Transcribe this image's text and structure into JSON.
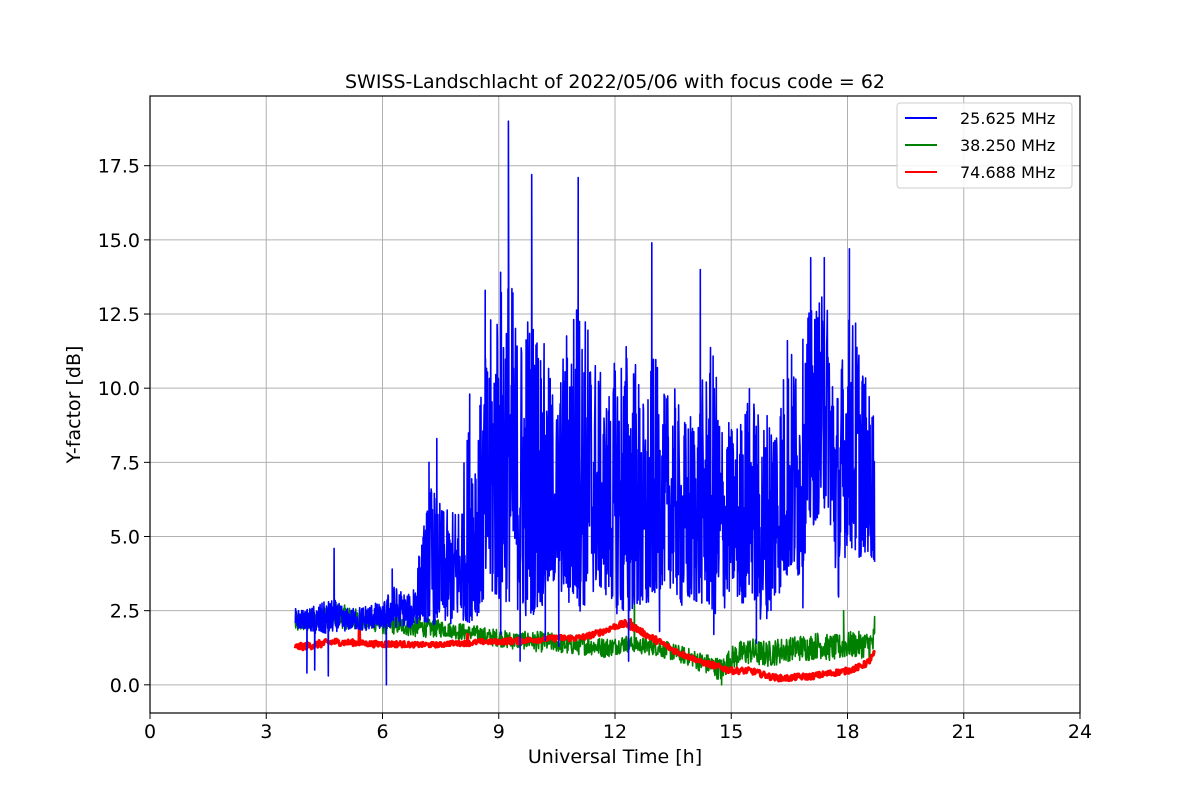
{
  "chart_data": {
    "type": "line",
    "title": "SWISS-Landschlacht of 2022/05/06 with focus code = 62",
    "xlabel": "Universal Time [h]",
    "ylabel": "Y-factor [dB]",
    "xlim": [
      0,
      24
    ],
    "ylim": [
      -0.95,
      19.85
    ],
    "xticks": [
      0,
      3,
      6,
      9,
      12,
      15,
      18,
      21,
      24
    ],
    "xtick_labels": [
      "0",
      "3",
      "6",
      "9",
      "12",
      "15",
      "18",
      "21",
      "24"
    ],
    "yticks": [
      0,
      2.5,
      5,
      7.5,
      10,
      12.5,
      15,
      17.5
    ],
    "ytick_labels": [
      "0.0",
      "2.5",
      "5.0",
      "7.5",
      "10.0",
      "12.5",
      "15.0",
      "17.5"
    ],
    "grid": true,
    "legend_position": "top-right",
    "series": [
      {
        "name": "25.625 MHz",
        "color": "#0000ff",
        "x": [
          3.75,
          4.0,
          4.25,
          4.5,
          4.75,
          5.0,
          5.25,
          5.5,
          5.75,
          6.0,
          6.25,
          6.5,
          6.75,
          7.0,
          7.25,
          7.5,
          7.75,
          8.0,
          8.25,
          8.5,
          8.75,
          9.0,
          9.25,
          9.5,
          9.75,
          10.0,
          10.25,
          10.5,
          10.75,
          11.0,
          11.25,
          11.5,
          11.75,
          12.0,
          12.25,
          12.5,
          12.75,
          13.0,
          13.25,
          13.5,
          13.75,
          14.0,
          14.25,
          14.5,
          14.75,
          15.0,
          15.25,
          15.5,
          15.75,
          16.0,
          16.25,
          16.5,
          16.75,
          17.0,
          17.25,
          17.5,
          17.75,
          18.0,
          18.25,
          18.5,
          18.7
        ],
        "low": [
          1.9,
          1.9,
          1.7,
          1.7,
          1.8,
          1.8,
          1.9,
          1.8,
          1.9,
          1.9,
          1.9,
          2.0,
          1.9,
          2.2,
          2.0,
          2.1,
          2.0,
          2.2,
          2.1,
          2.4,
          2.8,
          2.7,
          2.8,
          2.5,
          2.2,
          2.5,
          2.8,
          3.5,
          2.6,
          2.4,
          2.6,
          3.2,
          3.0,
          2.7,
          2.1,
          2.6,
          1.9,
          2.9,
          3.4,
          3.2,
          2.5,
          2.7,
          2.7,
          2.4,
          2.2,
          3.3,
          2.6,
          3.2,
          2.1,
          2.3,
          3.1,
          3.7,
          3.5,
          5.0,
          5.7,
          6.0,
          2.8,
          4.8,
          4.2,
          4.5,
          4.1
        ],
        "high": [
          2.6,
          2.5,
          2.7,
          2.8,
          2.9,
          2.6,
          2.6,
          2.7,
          2.8,
          2.7,
          3.4,
          3.2,
          3.0,
          4.9,
          6.9,
          6.1,
          5.8,
          6.4,
          9.4,
          9.5,
          12.0,
          14.2,
          14.8,
          12.0,
          13.0,
          12.7,
          11.0,
          9.6,
          12.3,
          13.4,
          12.7,
          11.3,
          9.8,
          11.0,
          12.0,
          11.4,
          9.6,
          11.3,
          9.8,
          10.2,
          9.0,
          9.5,
          10.3,
          11.6,
          9.5,
          8.8,
          9.2,
          10.4,
          9.0,
          9.8,
          10.4,
          11.5,
          11.1,
          12.6,
          13.2,
          13.1,
          10.3,
          12.6,
          12.5,
          10.1,
          9.7
        ],
        "peaks": [
          {
            "x": 4.05,
            "y": 0.4
          },
          {
            "x": 4.25,
            "y": 0.5
          },
          {
            "x": 4.6,
            "y": 0.3
          },
          {
            "x": 4.75,
            "y": 4.6
          },
          {
            "x": 6.1,
            "y": 0.0
          },
          {
            "x": 6.25,
            "y": 3.9
          },
          {
            "x": 6.8,
            "y": 3.2
          },
          {
            "x": 7.2,
            "y": 7.5
          },
          {
            "x": 7.4,
            "y": 8.3
          },
          {
            "x": 8.25,
            "y": 9.8
          },
          {
            "x": 8.65,
            "y": 13.3
          },
          {
            "x": 9.05,
            "y": 1.7
          },
          {
            "x": 9.25,
            "y": 19.0
          },
          {
            "x": 9.55,
            "y": 0.8
          },
          {
            "x": 9.85,
            "y": 17.2
          },
          {
            "x": 10.2,
            "y": 1.5
          },
          {
            "x": 10.55,
            "y": 1.3
          },
          {
            "x": 11.05,
            "y": 17.1
          },
          {
            "x": 12.05,
            "y": 2.4
          },
          {
            "x": 12.35,
            "y": 0.8
          },
          {
            "x": 12.95,
            "y": 14.9
          },
          {
            "x": 13.15,
            "y": 1.8
          },
          {
            "x": 14.2,
            "y": 14.0
          },
          {
            "x": 14.55,
            "y": 1.7
          },
          {
            "x": 15.65,
            "y": 1.4
          },
          {
            "x": 16.45,
            "y": 11.6
          },
          {
            "x": 16.85,
            "y": 2.6
          },
          {
            "x": 17.05,
            "y": 14.4
          },
          {
            "x": 17.4,
            "y": 14.4
          },
          {
            "x": 18.05,
            "y": 14.7
          },
          {
            "x": 18.35,
            "y": 4.5
          }
        ]
      },
      {
        "name": "38.250 MHz",
        "color": "#008000",
        "x": [
          3.75,
          4.0,
          4.25,
          4.5,
          4.75,
          5.0,
          5.25,
          5.5,
          5.75,
          6.0,
          6.25,
          6.5,
          6.75,
          7.0,
          7.25,
          7.5,
          7.75,
          8.0,
          8.25,
          8.5,
          8.75,
          9.0,
          9.25,
          9.5,
          9.75,
          10.0,
          10.25,
          10.5,
          10.75,
          11.0,
          11.25,
          11.5,
          11.75,
          12.0,
          12.25,
          12.5,
          12.75,
          13.0,
          13.25,
          13.5,
          13.75,
          14.0,
          14.25,
          14.5,
          14.75,
          15.0,
          15.25,
          15.5,
          15.75,
          16.0,
          16.25,
          16.5,
          16.75,
          17.0,
          17.25,
          17.5,
          17.75,
          18.0,
          18.25,
          18.5,
          18.7
        ],
        "low": [
          1.7,
          1.8,
          1.8,
          1.9,
          1.9,
          1.9,
          1.8,
          1.8,
          1.8,
          1.7,
          1.7,
          1.7,
          1.6,
          1.6,
          1.6,
          1.6,
          1.6,
          1.5,
          1.5,
          1.4,
          1.3,
          1.3,
          1.2,
          1.2,
          1.2,
          1.1,
          1.1,
          1.1,
          1.0,
          1.0,
          1.0,
          1.0,
          0.9,
          1.0,
          1.1,
          1.1,
          1.0,
          1.0,
          0.9,
          0.8,
          0.7,
          0.6,
          0.4,
          0.3,
          0.1,
          0.5,
          0.6,
          0.7,
          0.6,
          0.6,
          0.7,
          0.8,
          0.8,
          0.8,
          0.9,
          0.8,
          0.8,
          0.9,
          0.9,
          0.9,
          0.8
        ],
        "high": [
          2.4,
          2.5,
          2.6,
          2.7,
          2.8,
          2.7,
          2.6,
          2.5,
          2.5,
          2.4,
          2.4,
          2.3,
          2.3,
          2.3,
          2.2,
          2.2,
          2.1,
          2.1,
          2.0,
          2.0,
          1.9,
          1.9,
          1.8,
          1.8,
          1.8,
          1.8,
          1.8,
          1.7,
          1.7,
          1.7,
          1.7,
          1.6,
          1.6,
          1.6,
          1.7,
          1.6,
          1.6,
          1.6,
          1.5,
          1.4,
          1.3,
          1.2,
          1.1,
          1.0,
          0.9,
          1.3,
          1.5,
          1.6,
          1.5,
          1.5,
          1.6,
          1.6,
          1.7,
          1.7,
          1.8,
          1.7,
          1.7,
          1.8,
          1.8,
          1.8,
          2.0
        ],
        "peaks": [
          {
            "x": 12.5,
            "y": 3.4
          },
          {
            "x": 14.75,
            "y": 0.0
          },
          {
            "x": 17.9,
            "y": 2.5
          },
          {
            "x": 18.7,
            "y": 2.3
          }
        ]
      },
      {
        "name": "74.688 MHz",
        "color": "#ff0000",
        "x": [
          3.75,
          4.0,
          4.25,
          4.5,
          4.75,
          5.0,
          5.25,
          5.5,
          5.75,
          6.0,
          6.25,
          6.5,
          6.75,
          7.0,
          7.25,
          7.5,
          7.75,
          8.0,
          8.25,
          8.5,
          8.75,
          9.0,
          9.25,
          9.5,
          9.75,
          10.0,
          10.25,
          10.5,
          10.75,
          11.0,
          11.25,
          11.5,
          11.75,
          12.0,
          12.25,
          12.5,
          12.75,
          13.0,
          13.25,
          13.5,
          13.75,
          14.0,
          14.25,
          14.5,
          14.75,
          15.0,
          15.25,
          15.5,
          15.75,
          16.0,
          16.25,
          16.5,
          16.75,
          17.0,
          17.25,
          17.5,
          17.75,
          18.0,
          18.25,
          18.5,
          18.7
        ],
        "low": [
          1.15,
          1.15,
          1.2,
          1.25,
          1.3,
          1.3,
          1.3,
          1.3,
          1.25,
          1.25,
          1.25,
          1.25,
          1.25,
          1.25,
          1.25,
          1.25,
          1.3,
          1.3,
          1.3,
          1.35,
          1.35,
          1.35,
          1.35,
          1.35,
          1.4,
          1.4,
          1.45,
          1.45,
          1.45,
          1.45,
          1.5,
          1.6,
          1.7,
          1.85,
          1.9,
          1.8,
          1.6,
          1.4,
          1.25,
          1.05,
          0.9,
          0.8,
          0.65,
          0.55,
          0.45,
          0.35,
          0.35,
          0.35,
          0.25,
          0.15,
          0.1,
          0.1,
          0.15,
          0.15,
          0.2,
          0.25,
          0.3,
          0.35,
          0.45,
          0.6,
          0.85
        ],
        "high": [
          1.4,
          1.45,
          1.5,
          1.55,
          1.6,
          1.55,
          1.55,
          1.5,
          1.5,
          1.5,
          1.5,
          1.5,
          1.45,
          1.45,
          1.45,
          1.45,
          1.5,
          1.5,
          1.5,
          1.55,
          1.55,
          1.55,
          1.6,
          1.6,
          1.6,
          1.65,
          1.65,
          1.7,
          1.7,
          1.7,
          1.75,
          1.85,
          1.95,
          2.1,
          2.2,
          2.1,
          1.85,
          1.7,
          1.5,
          1.3,
          1.15,
          1.0,
          0.85,
          0.8,
          0.7,
          0.6,
          0.6,
          0.6,
          0.5,
          0.4,
          0.35,
          0.35,
          0.4,
          0.4,
          0.45,
          0.5,
          0.55,
          0.6,
          0.7,
          0.85,
          1.2
        ],
        "peaks": [
          {
            "x": 5.4,
            "y": 1.9
          },
          {
            "x": 8.2,
            "y": 1.7
          },
          {
            "x": 12.4,
            "y": 2.2
          }
        ]
      }
    ]
  }
}
